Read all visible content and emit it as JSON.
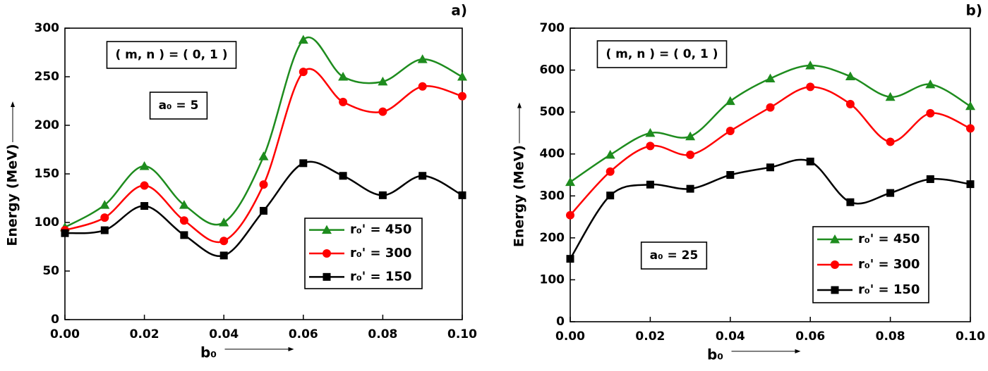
{
  "chart_data": [
    {
      "type": "line",
      "title": "a)",
      "x_label": "b₀",
      "y_label": "Energy (MeV)",
      "annotations": [
        "( m, n ) = ( 0, 1 )",
        "a₀ = 5"
      ],
      "x": [
        0,
        0.01,
        0.02,
        0.03,
        0.04,
        0.05,
        0.06,
        0.07,
        0.08,
        0.09,
        0.1
      ],
      "xlim": [
        0,
        0.1
      ],
      "xticks": [
        {
          "value": 0,
          "label": "0.00"
        },
        {
          "value": 0.02,
          "label": "0.02"
        },
        {
          "value": 0.04,
          "label": "0.04"
        },
        {
          "value": 0.06,
          "label": "0.06"
        },
        {
          "value": 0.08,
          "label": "0.08"
        },
        {
          "value": 0.1,
          "label": "0.10"
        }
      ],
      "ylim": [
        0,
        300
      ],
      "yticks": [
        0,
        50,
        100,
        150,
        200,
        250,
        300
      ],
      "legend": "lower right",
      "series": [
        {
          "name": "r₀' = 450",
          "color": "#1e8c1e",
          "marker": "triangle",
          "values": [
            95,
            118,
            158,
            118,
            100,
            168,
            288,
            250,
            245,
            268,
            250
          ]
        },
        {
          "name": "r₀' = 300",
          "color": "#ff0000",
          "marker": "circle",
          "values": [
            92,
            105,
            138,
            102,
            81,
            139,
            255,
            224,
            214,
            240,
            230
          ]
        },
        {
          "name": "r₀' = 150",
          "color": "#000000",
          "marker": "square",
          "values": [
            89,
            92,
            117,
            87,
            66,
            112,
            161,
            148,
            128,
            148,
            128
          ]
        }
      ]
    },
    {
      "type": "line",
      "title": "b)",
      "x_label": "b₀",
      "y_label": "Energy (MeV)",
      "annotations": [
        "( m, n ) = ( 0, 1 )",
        "a₀ = 25"
      ],
      "x": [
        0,
        0.01,
        0.02,
        0.03,
        0.04,
        0.05,
        0.06,
        0.07,
        0.08,
        0.09,
        0.1
      ],
      "xlim": [
        0,
        0.1
      ],
      "xticks": [
        {
          "value": 0,
          "label": "0.00"
        },
        {
          "value": 0.02,
          "label": "0.02"
        },
        {
          "value": 0.04,
          "label": "0.04"
        },
        {
          "value": 0.06,
          "label": "0.06"
        },
        {
          "value": 0.08,
          "label": "0.08"
        },
        {
          "value": 0.1,
          "label": "0.10"
        }
      ],
      "ylim": [
        0,
        700
      ],
      "yticks": [
        0,
        100,
        200,
        300,
        400,
        500,
        600,
        700
      ],
      "legend": "lower right",
      "series": [
        {
          "name": "r₀' = 450",
          "color": "#1e8c1e",
          "marker": "triangle",
          "values": [
            333,
            398,
            450,
            442,
            526,
            580,
            611,
            585,
            536,
            566,
            514
          ]
        },
        {
          "name": "r₀' = 300",
          "color": "#ff0000",
          "marker": "circle",
          "values": [
            254,
            358,
            419,
            398,
            455,
            511,
            560,
            519,
            429,
            497,
            461
          ]
        },
        {
          "name": "r₀' = 150",
          "color": "#000000",
          "marker": "square",
          "values": [
            150,
            301,
            327,
            317,
            350,
            368,
            382,
            285,
            307,
            340,
            328
          ]
        }
      ]
    }
  ]
}
